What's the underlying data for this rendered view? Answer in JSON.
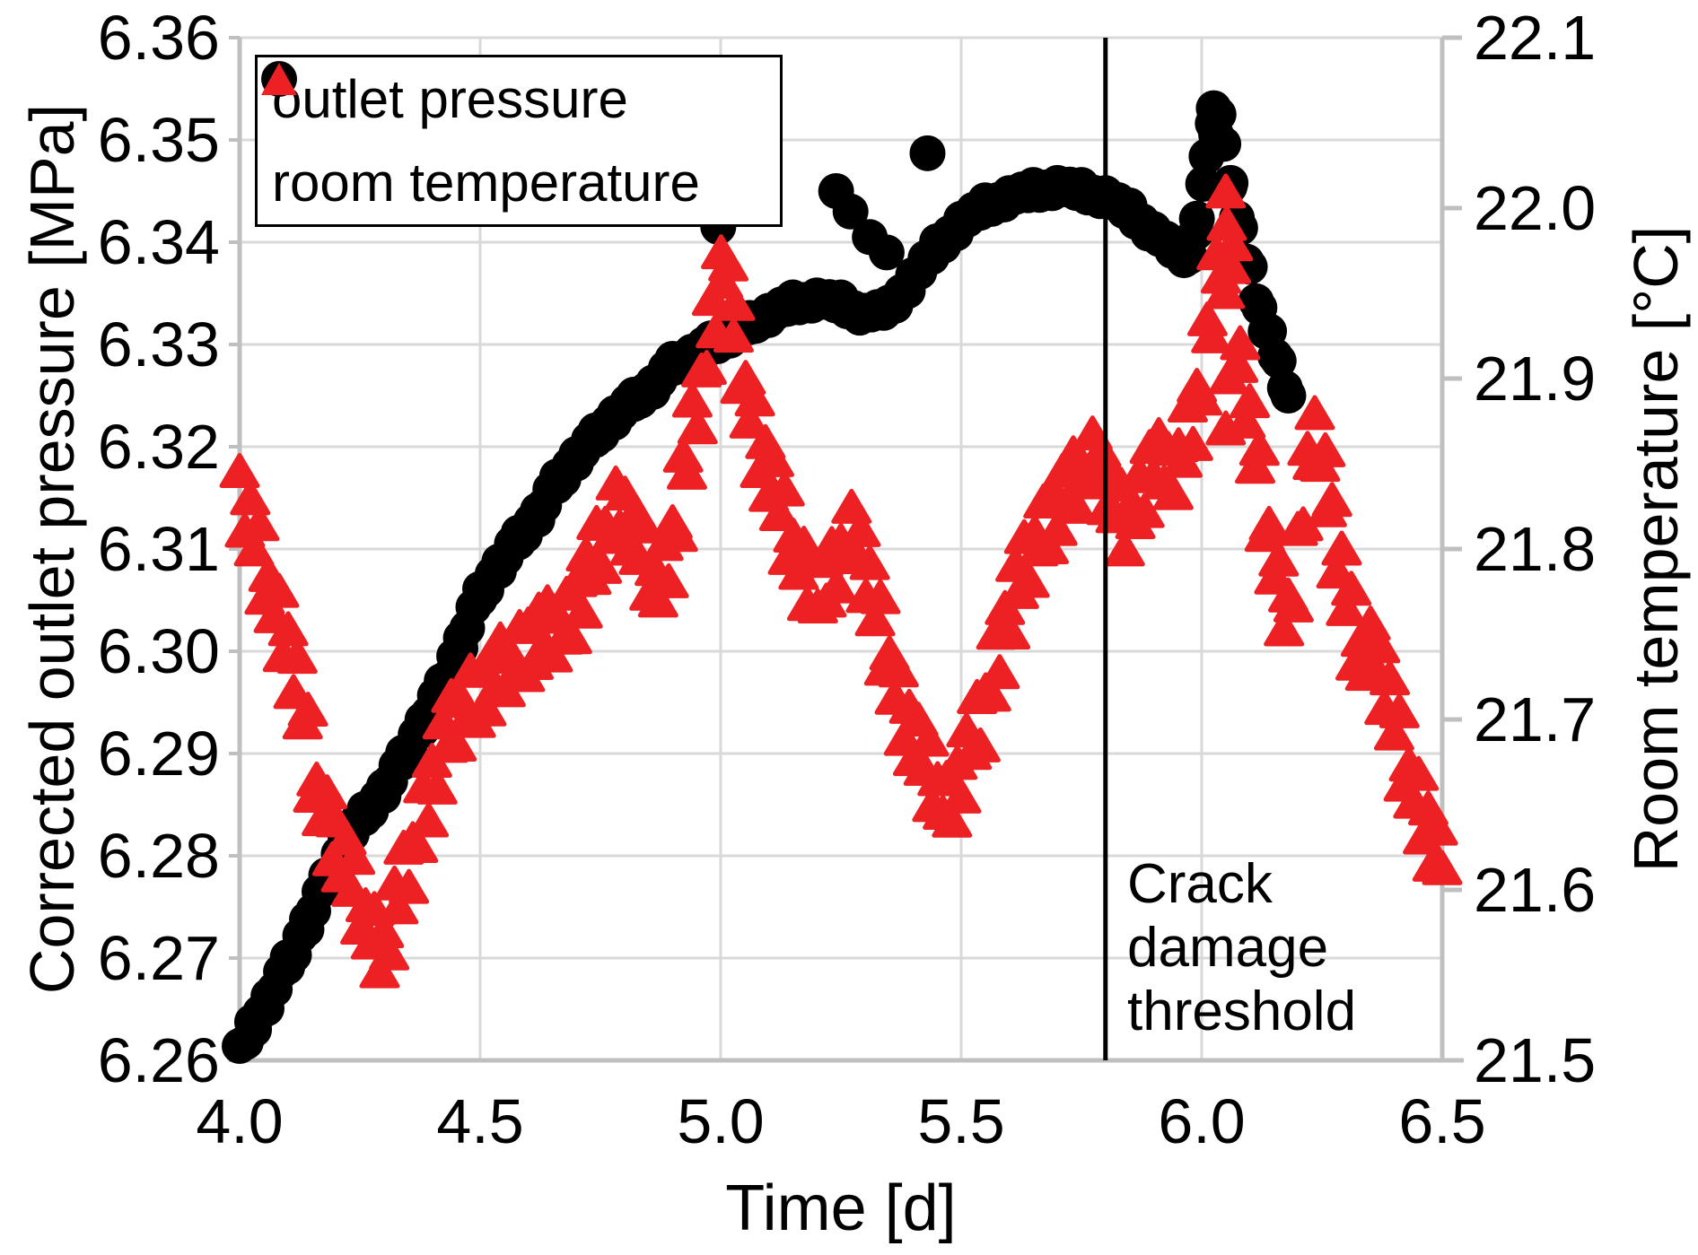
{
  "figure": {
    "background": "#ffffff"
  },
  "chart_data": {
    "type": "scatter",
    "title": "",
    "grid": {
      "show": true,
      "color": "#d9d9d9",
      "width": 3
    },
    "axis_color": "#bfbfbf",
    "x_axis": {
      "label": "Time [d]",
      "min": 4.0,
      "max": 6.5,
      "tick_values": [
        4.0,
        4.5,
        5.0,
        5.5,
        6.0,
        6.5
      ],
      "tick_labels": [
        "4.0",
        "4.5",
        "5.0",
        "5.5",
        "6.0",
        "6.5"
      ]
    },
    "y_left_axis": {
      "label": "Corrected outlet pressure [MPa]",
      "min": 6.26,
      "max": 6.36,
      "tick_values": [
        6.26,
        6.27,
        6.28,
        6.29,
        6.3,
        6.31,
        6.32,
        6.33,
        6.34,
        6.35,
        6.36
      ],
      "tick_labels": [
        "6.26",
        "6.27",
        "6.28",
        "6.29",
        "6.30",
        "6.31",
        "6.32",
        "6.33",
        "6.34",
        "6.35",
        "6.36"
      ]
    },
    "y_right_axis": {
      "label": "Room temperature [°C]",
      "min": 21.5,
      "max": 22.1,
      "tick_values": [
        21.5,
        21.6,
        21.7,
        21.8,
        21.9,
        22.0,
        22.1
      ],
      "tick_labels": [
        "21.5",
        "21.6",
        "21.7",
        "21.8",
        "21.9",
        "22.0",
        "22.1"
      ]
    },
    "legend": {
      "position": "top-left",
      "entries": [
        {
          "label": "outlet pressure",
          "marker": "circle",
          "color": "#000000"
        },
        {
          "label": "room temperature",
          "marker": "triangle",
          "color": "#ed2024"
        }
      ]
    },
    "vertical_line": {
      "x": 5.8,
      "color": "#000000",
      "label": "Crack damage threshold"
    },
    "series": [
      {
        "name": "outlet pressure",
        "axis": "left",
        "marker": "circle",
        "color": "#000000",
        "marker_size_px": 40,
        "sample_step": 0.013,
        "band_jitter": [
          0.0004,
          -0.0003,
          0.0006,
          -0.0005,
          0.0001,
          -0.0006,
          0.0003,
          -0.0002
        ],
        "points": [
          [
            4.0,
            6.261
          ],
          [
            4.03,
            6.2635
          ],
          [
            4.06,
            6.266
          ],
          [
            4.1,
            6.2695
          ],
          [
            4.14,
            6.2735
          ],
          [
            4.18,
            6.2775
          ],
          [
            4.22,
            6.2815
          ],
          [
            4.26,
            6.284
          ],
          [
            4.3,
            6.2865
          ],
          [
            4.34,
            6.2895
          ],
          [
            4.38,
            6.293
          ],
          [
            4.42,
            6.2965
          ],
          [
            4.46,
            6.301
          ],
          [
            4.5,
            6.3055
          ],
          [
            4.54,
            6.3085
          ],
          [
            4.58,
            6.311
          ],
          [
            4.62,
            6.3135
          ],
          [
            4.66,
            6.3165
          ],
          [
            4.7,
            6.319
          ],
          [
            4.74,
            6.321
          ],
          [
            4.78,
            6.323
          ],
          [
            4.82,
            6.3245
          ],
          [
            4.86,
            6.326
          ],
          [
            4.9,
            6.328
          ],
          [
            4.94,
            6.329
          ],
          [
            4.98,
            6.33
          ],
          [
            5.02,
            6.331
          ],
          [
            5.06,
            6.332
          ],
          [
            5.1,
            6.333
          ],
          [
            5.15,
            6.334
          ],
          [
            5.2,
            6.3345
          ],
          [
            5.25,
            6.334
          ],
          [
            5.3,
            6.333
          ],
          [
            5.35,
            6.3335
          ],
          [
            5.4,
            6.3365
          ],
          [
            5.45,
            6.3395
          ],
          [
            5.5,
            6.342
          ],
          [
            5.55,
            6.3435
          ],
          [
            5.6,
            6.3445
          ],
          [
            5.65,
            6.345
          ],
          [
            5.7,
            6.3455
          ],
          [
            5.75,
            6.345
          ],
          [
            5.8,
            6.3445
          ],
          [
            5.85,
            6.343
          ],
          [
            5.9,
            6.341
          ],
          [
            5.95,
            6.339
          ],
          [
            5.975,
            6.3385
          ],
          [
            5.99,
            6.342
          ],
          [
            6.01,
            6.348
          ],
          [
            6.025,
            6.3525
          ],
          [
            6.035,
            6.353
          ],
          [
            6.045,
            6.3495
          ],
          [
            6.06,
            6.3455
          ],
          [
            6.08,
            6.341
          ],
          [
            6.1,
            6.337
          ],
          [
            6.12,
            6.3335
          ],
          [
            6.14,
            6.331
          ],
          [
            6.16,
            6.328
          ],
          [
            6.18,
            6.325
          ]
        ],
        "outliers": [
          [
            4.965,
            6.3445
          ],
          [
            4.995,
            6.3415
          ],
          [
            5.24,
            6.345
          ],
          [
            5.27,
            6.343
          ],
          [
            5.31,
            6.3405
          ],
          [
            5.345,
            6.339
          ],
          [
            5.43,
            6.3487
          ],
          [
            6.03,
            6.3505
          ]
        ]
      },
      {
        "name": "room temperature",
        "axis": "right",
        "marker": "triangle",
        "color": "#ed2024",
        "marker_size_px": 42,
        "sample_step": 0.011,
        "band_jitter": [
          0.01,
          -0.014,
          0.016,
          -0.006,
          0.018,
          -0.016,
          0.004,
          -0.011,
          0.013,
          -0.018
        ],
        "points": [
          [
            4.0,
            21.835
          ],
          [
            4.03,
            21.805
          ],
          [
            4.06,
            21.78
          ],
          [
            4.09,
            21.755
          ],
          [
            4.12,
            21.72
          ],
          [
            4.16,
            21.66
          ],
          [
            4.2,
            21.63
          ],
          [
            4.24,
            21.6
          ],
          [
            4.28,
            21.575
          ],
          [
            4.3,
            21.565
          ],
          [
            4.33,
            21.595
          ],
          [
            4.36,
            21.625
          ],
          [
            4.4,
            21.665
          ],
          [
            4.44,
            21.695
          ],
          [
            4.48,
            21.715
          ],
          [
            4.52,
            21.72
          ],
          [
            4.56,
            21.735
          ],
          [
            4.6,
            21.745
          ],
          [
            4.64,
            21.75
          ],
          [
            4.68,
            21.76
          ],
          [
            4.72,
            21.78
          ],
          [
            4.76,
            21.81
          ],
          [
            4.79,
            21.83
          ],
          [
            4.83,
            21.8
          ],
          [
            4.87,
            21.78
          ],
          [
            4.9,
            21.805
          ],
          [
            4.93,
            21.85
          ],
          [
            4.96,
            21.9
          ],
          [
            4.99,
            21.945
          ],
          [
            5.005,
            21.97
          ],
          [
            5.03,
            21.925
          ],
          [
            5.06,
            21.885
          ],
          [
            5.1,
            21.845
          ],
          [
            5.14,
            21.81
          ],
          [
            5.18,
            21.785
          ],
          [
            5.22,
            21.775
          ],
          [
            5.25,
            21.8
          ],
          [
            5.28,
            21.815
          ],
          [
            5.31,
            21.775
          ],
          [
            5.34,
            21.745
          ],
          [
            5.37,
            21.715
          ],
          [
            5.4,
            21.69
          ],
          [
            5.44,
            21.665
          ],
          [
            5.47,
            21.652
          ],
          [
            5.5,
            21.668
          ],
          [
            5.54,
            21.7
          ],
          [
            5.58,
            21.745
          ],
          [
            5.62,
            21.78
          ],
          [
            5.66,
            21.81
          ],
          [
            5.7,
            21.825
          ],
          [
            5.74,
            21.84
          ],
          [
            5.78,
            21.857
          ],
          [
            5.81,
            21.83
          ],
          [
            5.84,
            21.815
          ],
          [
            5.87,
            21.83
          ],
          [
            5.9,
            21.856
          ],
          [
            5.93,
            21.84
          ],
          [
            5.96,
            21.862
          ],
          [
            5.99,
            21.885
          ],
          [
            6.02,
            21.93
          ],
          [
            6.04,
            21.975
          ],
          [
            6.05,
            22.005
          ],
          [
            6.065,
            21.965
          ],
          [
            6.08,
            21.91
          ],
          [
            6.1,
            21.87
          ],
          [
            6.12,
            21.84
          ],
          [
            6.14,
            21.81
          ],
          [
            6.16,
            21.78
          ],
          [
            6.18,
            21.762
          ],
          [
            6.2,
            21.795
          ],
          [
            6.22,
            21.84
          ],
          [
            6.235,
            21.875
          ],
          [
            6.26,
            21.84
          ],
          [
            6.28,
            21.8
          ],
          [
            6.3,
            21.77
          ],
          [
            6.32,
            21.748
          ],
          [
            6.34,
            21.737
          ],
          [
            6.36,
            21.747
          ],
          [
            6.38,
            21.72
          ],
          [
            6.4,
            21.697
          ],
          [
            6.42,
            21.677
          ],
          [
            6.44,
            21.662
          ],
          [
            6.46,
            21.648
          ],
          [
            6.48,
            21.628
          ],
          [
            6.5,
            21.612
          ]
        ],
        "outliers": [
          [
            6.048,
            21.95
          ],
          [
            6.052,
            21.99
          ],
          [
            6.056,
            21.9
          ],
          [
            6.05,
            21.87
          ]
        ]
      }
    ]
  }
}
